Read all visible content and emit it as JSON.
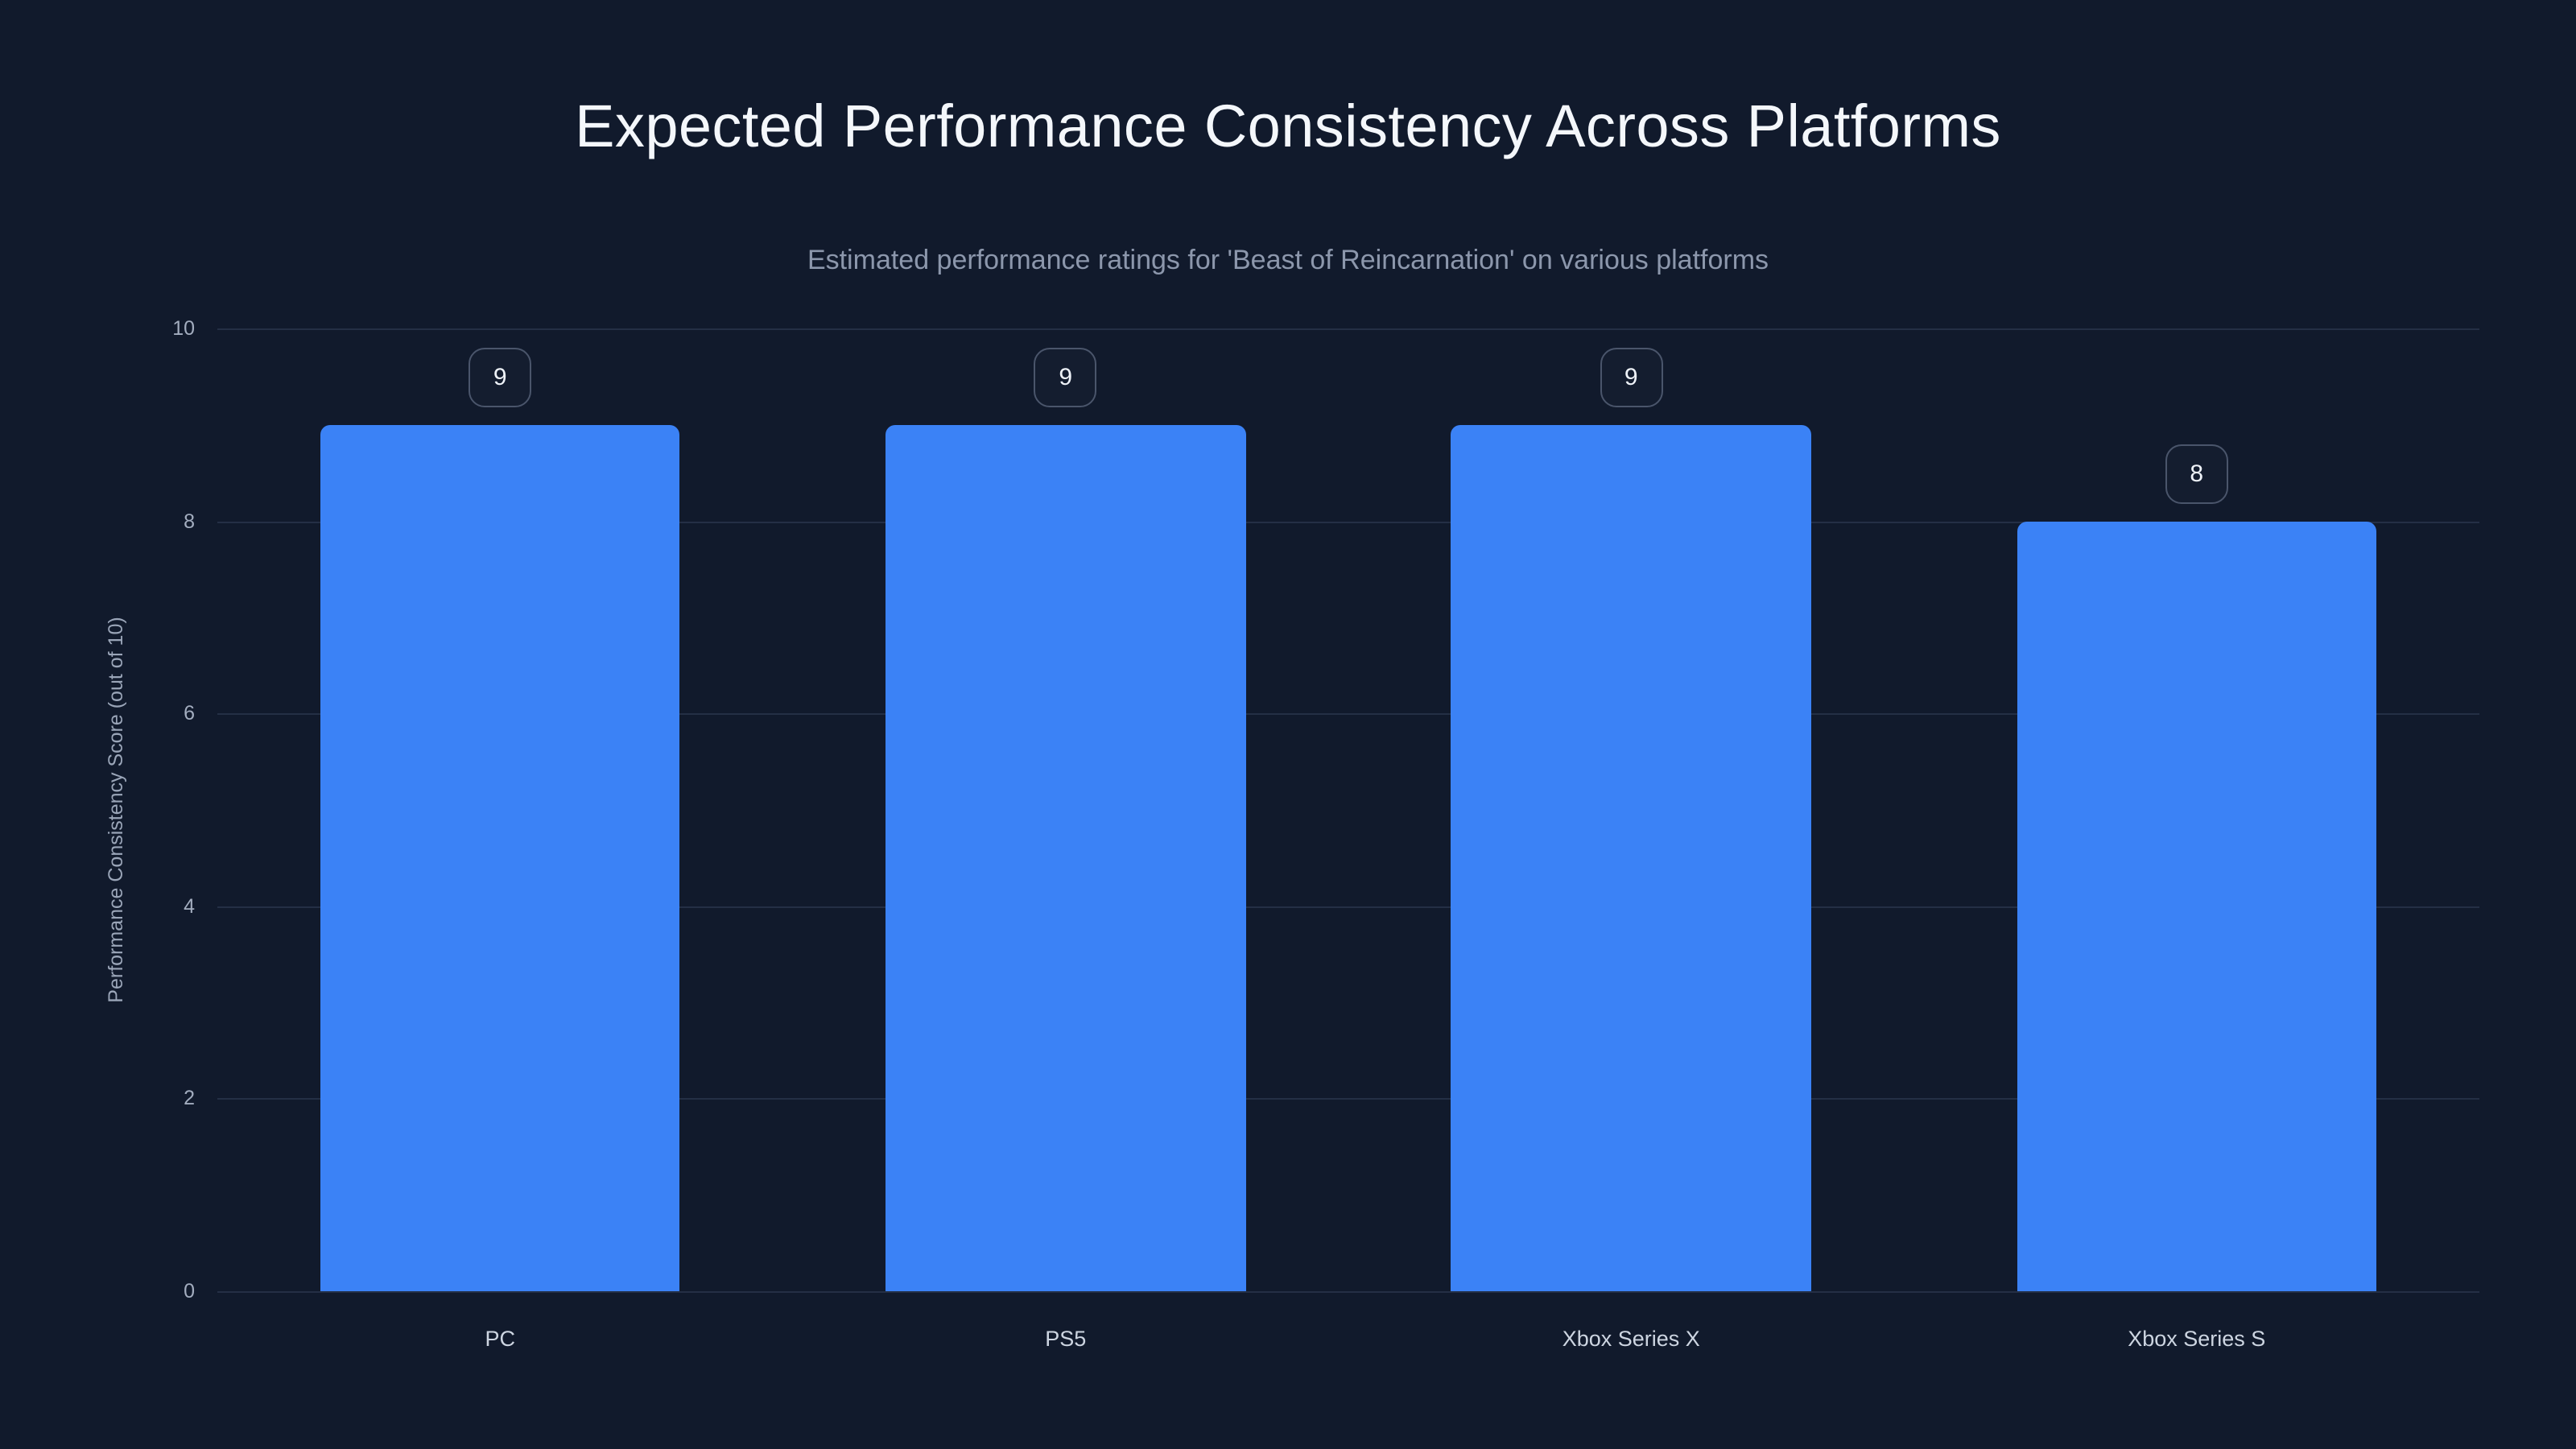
{
  "page": {
    "title": "Expected Performance Consistency Across Platforms",
    "subtitle": "Estimated performance ratings for 'Beast of Reincarnation' on various platforms"
  },
  "chart_data": {
    "type": "bar",
    "title": "Expected Performance Consistency Across Platforms",
    "subtitle": "Estimated performance ratings for 'Beast of Reincarnation' on various platforms",
    "categories": [
      "PC",
      "PS5",
      "Xbox Series X",
      "Xbox Series S"
    ],
    "values": [
      9,
      9,
      9,
      8
    ],
    "value_labels": [
      "9",
      "9",
      "9",
      "8"
    ],
    "xlabel": "",
    "ylabel": "Performance Consistency Score (out of 10)",
    "ylim": [
      0,
      10
    ],
    "yticks": [
      0,
      2,
      4,
      6,
      8,
      10
    ],
    "grid": true,
    "legend": false
  },
  "colors": {
    "background": "#111a2c",
    "bar": "#3b82f6",
    "gridline": "#242f45",
    "title": "#f4f7fb",
    "subtitle": "#8c97ac",
    "tick_label": "#a3adbf",
    "axis_label": "#9aa5b8",
    "category_label": "#cdd5e1",
    "badge_border": "#4a556b",
    "badge_background": "#141d2f",
    "badge_text": "#eef2f8"
  }
}
